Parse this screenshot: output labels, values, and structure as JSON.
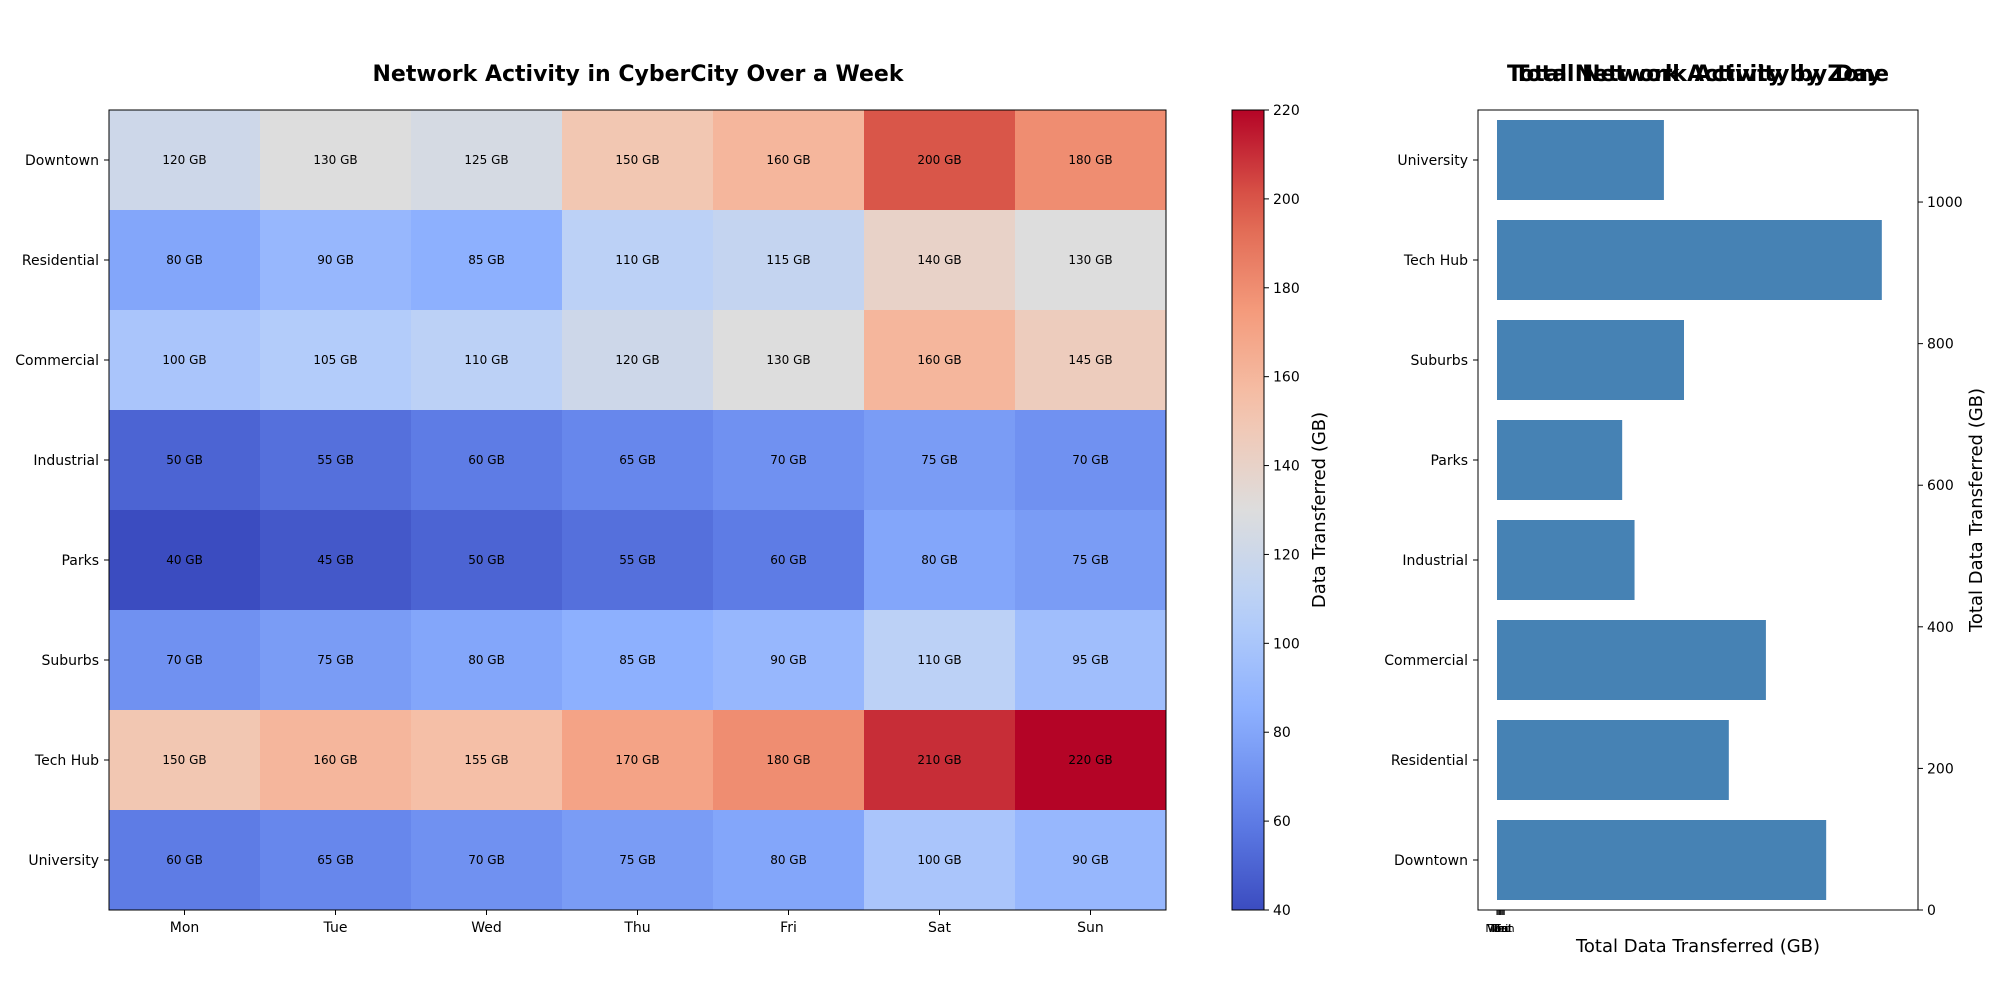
{
  "chart_data": [
    {
      "type": "heatmap",
      "title": "Network Activity in CyberCity Over a Week",
      "x_categories": [
        "Mon",
        "Tue",
        "Wed",
        "Thu",
        "Fri",
        "Sat",
        "Sun"
      ],
      "y_categories": [
        "Downtown",
        "Residential",
        "Commercial",
        "Industrial",
        "Parks",
        "Suburbs",
        "Tech Hub",
        "University"
      ],
      "values": [
        [
          120,
          130,
          125,
          150,
          160,
          200,
          180
        ],
        [
          80,
          90,
          85,
          110,
          115,
          140,
          130
        ],
        [
          100,
          105,
          110,
          120,
          130,
          160,
          145
        ],
        [
          50,
          55,
          60,
          65,
          70,
          75,
          70
        ],
        [
          40,
          45,
          50,
          55,
          60,
          80,
          75
        ],
        [
          70,
          75,
          80,
          85,
          90,
          110,
          95
        ],
        [
          150,
          160,
          155,
          170,
          180,
          210,
          220
        ],
        [
          60,
          65,
          70,
          75,
          80,
          100,
          90
        ]
      ],
      "cell_unit": "GB",
      "colormap": "coolwarm",
      "colorbar": {
        "label": "Data Transferred (GB)",
        "range": [
          40,
          220
        ],
        "ticks": [
          40,
          60,
          80,
          100,
          120,
          140,
          160,
          180,
          200,
          220
        ]
      }
    },
    {
      "type": "bar",
      "orientation": "horizontal",
      "title_overlap": [
        "Total Network Activity by Zone",
        "Total Network Activity by Day"
      ],
      "categories": [
        "Downtown",
        "Residential",
        "Commercial",
        "Industrial",
        "Parks",
        "Suburbs",
        "Tech Hub",
        "University"
      ],
      "values": [
        1065,
        750,
        870,
        445,
        405,
        605,
        1245,
        540
      ],
      "color": "#4682b4",
      "xlabel": "Total Data Transferred (GB)",
      "ylabel_right": "Total Data Transferred (GB)",
      "right_axis_range": [
        0,
        1130
      ],
      "right_axis_ticks": [
        0,
        200,
        400,
        600,
        800,
        1000
      ],
      "bottom_axis_clutter": [
        "Mon",
        "Tue",
        "Wed",
        "Thu",
        "Fri",
        "Sat",
        "Sun"
      ]
    }
  ]
}
